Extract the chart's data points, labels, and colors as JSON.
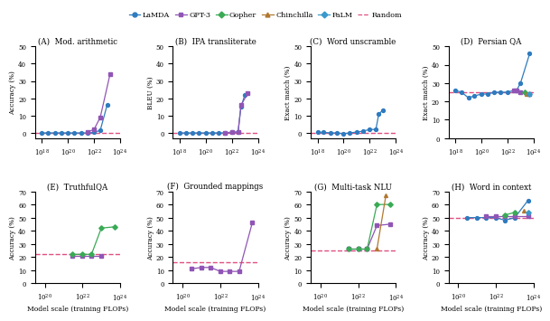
{
  "series_styles": {
    "LaMDA": {
      "color": "#3a7bbf",
      "marker": "o",
      "ms": 3.0,
      "lw": 1.0
    },
    "GPT-3": {
      "color": "#9b5fc0",
      "marker": "s",
      "ms": 3.0,
      "lw": 1.0
    },
    "Gopher": {
      "color": "#3aaa5a",
      "marker": "D",
      "ms": 3.0,
      "lw": 1.0
    },
    "Chinchilla": {
      "color": "#b07830",
      "marker": "^",
      "ms": 3.5,
      "lw": 1.0
    },
    "PaLM": {
      "color": "#3aaa5a",
      "marker": "D",
      "ms": 3.0,
      "lw": 1.0
    }
  },
  "random_style": {
    "color": "#e05080",
    "lw": 1.0,
    "ls": "--"
  },
  "subplots": [
    {
      "title": "(A)  Mod. arithmetic",
      "ylabel": "Accuracy (%)",
      "ylim": [
        -3,
        50
      ],
      "yticks": [
        0,
        10,
        20,
        30,
        40,
        50
      ],
      "random_val": 0,
      "xticks": [
        1e+18,
        1e+20,
        1e+22,
        1e+24
      ],
      "xlim": [
        3e+17,
        3e+23
      ],
      "series": {
        "LaMDA": {
          "x": [
            1e+18,
            3e+18,
            1e+19,
            3e+19,
            1e+20,
            3e+20,
            1e+21,
            3e+21,
            1e+22,
            3e+22,
            1e+23
          ],
          "y": [
            0,
            0,
            0,
            0,
            0,
            0,
            0,
            0,
            0.3,
            1.5,
            16
          ]
        },
        "GPT-3": {
          "x": [
            3e+21,
            1e+22,
            3e+22,
            1.7e+23
          ],
          "y": [
            0.5,
            2,
            9,
            34
          ]
        },
        "Gopher": {
          "x": [],
          "y": []
        },
        "Chinchilla": {
          "x": [],
          "y": []
        },
        "PaLM": {
          "x": [],
          "y": []
        }
      }
    },
    {
      "title": "(B)  IPA transliterate",
      "ylabel": "BLEU (%)",
      "ylim": [
        -3,
        50
      ],
      "yticks": [
        0,
        10,
        20,
        30,
        40,
        50
      ],
      "random_val": 0,
      "xticks": [
        1e+18,
        1e+20,
        1e+22,
        1e+24
      ],
      "xlim": [
        3e+17,
        3e+23
      ],
      "series": {
        "LaMDA": {
          "x": [
            1e+18,
            3e+18,
            1e+19,
            3e+19,
            1e+20,
            3e+20,
            1e+21,
            3e+21,
            1e+22,
            3e+22,
            5e+22,
            1e+23
          ],
          "y": [
            0,
            0,
            0,
            0,
            0,
            0,
            0,
            0,
            0.5,
            0.5,
            15,
            22
          ]
        },
        "GPT-3": {
          "x": [
            3e+21,
            1e+22,
            3e+22,
            5e+22,
            1.7e+23
          ],
          "y": [
            0,
            0.3,
            0.5,
            16,
            23
          ]
        },
        "Gopher": {
          "x": [],
          "y": []
        },
        "Chinchilla": {
          "x": [],
          "y": []
        },
        "PaLM": {
          "x": [],
          "y": []
        }
      }
    },
    {
      "title": "(C)  Word unscramble",
      "ylabel": "Exact match (%)",
      "ylim": [
        -3,
        50
      ],
      "yticks": [
        0,
        10,
        20,
        30,
        40,
        50
      ],
      "random_val": 0,
      "xticks": [
        1e+18,
        1e+20,
        1e+22,
        1e+24
      ],
      "xlim": [
        3e+17,
        3e+23
      ],
      "series": {
        "LaMDA": {
          "x": [
            1e+18,
            3e+18,
            1e+19,
            3e+19,
            1e+20,
            3e+20,
            1e+21,
            3e+21,
            1e+22,
            3e+22,
            5e+22,
            1e+23
          ],
          "y": [
            0.5,
            0.3,
            0,
            0,
            -0.5,
            0,
            0.5,
            1,
            2,
            2,
            11,
            13
          ]
        },
        "GPT-3": {
          "x": [],
          "y": []
        },
        "Gopher": {
          "x": [],
          "y": []
        },
        "Chinchilla": {
          "x": [],
          "y": []
        },
        "PaLM": {
          "x": [],
          "y": []
        }
      }
    },
    {
      "title": "(D)  Persian QA",
      "ylabel": "Exact match (%)",
      "ylim": [
        0,
        50
      ],
      "yticks": [
        0,
        10,
        20,
        30,
        40,
        50
      ],
      "random_val": 25,
      "xticks": [
        1e+18,
        1e+20,
        1e+22,
        1e+24
      ],
      "xlim": [
        3e+17,
        3e+23
      ],
      "series": {
        "LaMDA": {
          "x": [
            1e+18,
            3e+18,
            1e+19,
            3e+19,
            1e+20,
            3e+20,
            1e+21,
            3e+21,
            1e+22,
            3e+22,
            5e+22,
            1e+23,
            5e+23
          ],
          "y": [
            26,
            25,
            22,
            23,
            24,
            24,
            25,
            25,
            25,
            26,
            26,
            30,
            46
          ]
        },
        "GPT-3": {
          "x": [
            3e+22,
            5e+22,
            1e+23,
            5e+23
          ],
          "y": [
            26,
            26,
            25,
            24
          ]
        },
        "Gopher": {
          "x": [
            2e+23
          ],
          "y": [
            25
          ]
        },
        "Chinchilla": {
          "x": [
            3e+23
          ],
          "y": [
            24
          ]
        },
        "PaLM": {
          "x": [
            5e+23
          ],
          "y": [
            24
          ]
        }
      }
    },
    {
      "title": "(E)  TruthfulQA",
      "ylabel": "Accuracy (%)",
      "ylim": [
        0,
        70
      ],
      "yticks": [
        0,
        10,
        20,
        30,
        40,
        50,
        60,
        70
      ],
      "random_val": 22,
      "xticks": [
        1e+20,
        1e+22,
        1e+24
      ],
      "xlim": [
        3e+19,
        3e+23
      ],
      "series": {
        "LaMDA": {
          "x": [],
          "y": []
        },
        "GPT-3": {
          "x": [
            3e+21,
            1e+22,
            3e+22,
            1e+23
          ],
          "y": [
            21,
            21,
            21,
            21
          ]
        },
        "Gopher": {
          "x": [
            3e+21,
            1e+22,
            3e+22,
            1e+23,
            5e+23
          ],
          "y": [
            22,
            22,
            22,
            42,
            43
          ]
        },
        "Chinchilla": {
          "x": [],
          "y": []
        },
        "PaLM": {
          "x": [],
          "y": []
        }
      }
    },
    {
      "title": "(F)  Grounded mappings",
      "ylabel": "Accuracy (%)",
      "ylim": [
        0,
        70
      ],
      "yticks": [
        0,
        10,
        20,
        30,
        40,
        50,
        60,
        70
      ],
      "random_val": 16,
      "xticks": [
        1e+20,
        1e+22,
        1e+24
      ],
      "xlim": [
        3e+19,
        3e+23
      ],
      "series": {
        "LaMDA": {
          "x": [],
          "y": []
        },
        "GPT-3": {
          "x": [
            3e+20,
            1e+21,
            3e+21,
            1e+22,
            3e+22,
            1e+23,
            5e+23
          ],
          "y": [
            11,
            12,
            12,
            9,
            9,
            9,
            46
          ]
        },
        "Gopher": {
          "x": [],
          "y": []
        },
        "Chinchilla": {
          "x": [],
          "y": []
        },
        "PaLM": {
          "x": [],
          "y": []
        }
      }
    },
    {
      "title": "(G)  Multi-task NLU",
      "ylabel": "Accuracy (%)",
      "ylim": [
        0,
        70
      ],
      "yticks": [
        0,
        10,
        20,
        30,
        40,
        50,
        60,
        70
      ],
      "random_val": 25,
      "xticks": [
        1e+20,
        1e+22,
        1e+24
      ],
      "xlim": [
        3e+19,
        3e+23
      ],
      "series": {
        "LaMDA": {
          "x": [],
          "y": []
        },
        "GPT-3": {
          "x": [
            3e+21,
            1e+22,
            3e+22,
            1e+23,
            5e+23
          ],
          "y": [
            26,
            26,
            26,
            44,
            45
          ]
        },
        "Gopher": {
          "x": [
            3e+21,
            1e+22,
            3e+22,
            1e+23,
            5e+23
          ],
          "y": [
            26,
            26,
            26,
            60,
            60
          ]
        },
        "Chinchilla": {
          "x": [
            1e+23,
            3e+23
          ],
          "y": [
            26,
            67
          ]
        },
        "PaLM": {
          "x": [],
          "y": []
        }
      }
    },
    {
      "title": "(H)  Word in context",
      "ylabel": "Accuracy (%)",
      "ylim": [
        0,
        70
      ],
      "yticks": [
        0,
        10,
        20,
        30,
        40,
        50,
        60,
        70
      ],
      "random_val": 50,
      "xticks": [
        1e+20,
        1e+22,
        1e+24
      ],
      "xlim": [
        3e+19,
        3e+23
      ],
      "series": {
        "LaMDA": {
          "x": [
            3e+20,
            1e+21,
            3e+21,
            1e+22,
            3e+22,
            1e+23,
            5e+23
          ],
          "y": [
            50,
            50,
            50,
            50,
            48,
            50,
            63
          ]
        },
        "GPT-3": {
          "x": [
            3e+21,
            1e+22,
            3e+22,
            1e+23,
            5e+23
          ],
          "y": [
            51,
            51,
            51,
            51,
            51
          ]
        },
        "Gopher": {
          "x": [
            3e+22,
            1e+23
          ],
          "y": [
            52,
            54
          ]
        },
        "Chinchilla": {
          "x": [
            3e+23
          ],
          "y": [
            55
          ]
        },
        "PaLM": {
          "x": [
            5e+23
          ],
          "y": [
            54
          ]
        }
      }
    }
  ],
  "xlabel": "Model scale (training FLOPs)"
}
